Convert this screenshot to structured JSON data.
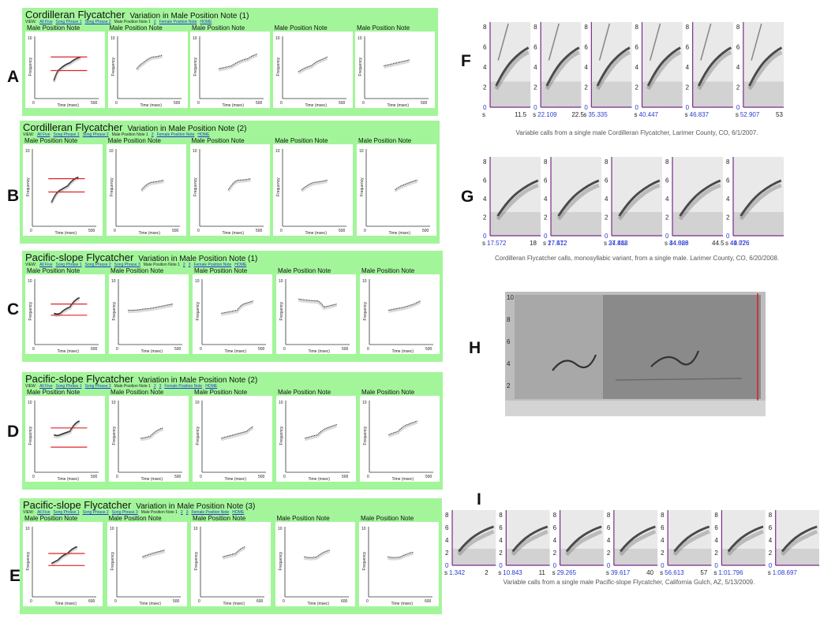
{
  "letters": [
    "A",
    "B",
    "C",
    "D",
    "E",
    "F",
    "G",
    "H",
    "I"
  ],
  "left_panels": [
    {
      "species": "Cordilleran Flycatcher",
      "subtitle": "Variation in Male Position Note (1)",
      "nav": [
        {
          "t": "VIEW:",
          "l": false
        },
        {
          "t": "All Five",
          "l": true
        },
        {
          "t": "Song Phrase 1",
          "l": true
        },
        {
          "t": "Song Phrase 2",
          "l": true
        },
        {
          "t": "Male Position Note 1",
          "l": false
        },
        {
          "t": "2",
          "l": true
        },
        {
          "t": "Female Position Note",
          "l": true
        },
        {
          "t": "HOME",
          "l": true
        }
      ],
      "plot_label": "Male Position Note",
      "xmax": [
        "500",
        "500",
        "500",
        "500",
        "500"
      ]
    },
    {
      "species": "Cordilleran Flycatcher",
      "subtitle": "Variation in Male Position Note (2)",
      "nav": [
        {
          "t": "VIEW:",
          "l": false
        },
        {
          "t": "All Five",
          "l": true
        },
        {
          "t": "Song Phrase 1",
          "l": true
        },
        {
          "t": "Song Phrase 2",
          "l": true
        },
        {
          "t": "Male Position Note 1",
          "l": false
        },
        {
          "t": "2",
          "l": true
        },
        {
          "t": "Female Position Note",
          "l": true
        },
        {
          "t": "HOME",
          "l": true
        }
      ],
      "plot_label": "Male Position Note",
      "xmax": [
        "500",
        "500",
        "500",
        "500",
        "500"
      ]
    },
    {
      "species": "Pacific-slope Flycatcher",
      "subtitle": "Variation in Male Position Note (1)",
      "nav": [
        {
          "t": "VIEW:",
          "l": false
        },
        {
          "t": "All Five",
          "l": true
        },
        {
          "t": "Song Phrase 1",
          "l": true
        },
        {
          "t": "Song Phrase 2",
          "l": true
        },
        {
          "t": "Song Phrase 3",
          "l": true
        },
        {
          "t": "Male Position Note 1",
          "l": false
        },
        {
          "t": "2",
          "l": true
        },
        {
          "t": "3",
          "l": true
        },
        {
          "t": "Female Position Note",
          "l": true
        },
        {
          "t": "HOME",
          "l": true
        }
      ],
      "plot_label": "Male Position Note",
      "xmax": [
        "600",
        "500",
        "500",
        "500",
        "500"
      ]
    },
    {
      "species": "Pacific-slope Flycatcher",
      "subtitle": "Variation in Male Position Note (2)",
      "nav": [
        {
          "t": "VIEW:",
          "l": false
        },
        {
          "t": "All Five",
          "l": true
        },
        {
          "t": "Song Phrase 1",
          "l": true
        },
        {
          "t": "Song Phrase 2",
          "l": true
        },
        {
          "t": "Male Position Note 1",
          "l": false
        },
        {
          "t": "2",
          "l": true
        },
        {
          "t": "3",
          "l": true
        },
        {
          "t": "Female Position Note",
          "l": true
        },
        {
          "t": "HOME",
          "l": true
        }
      ],
      "plot_label": "Male Position Note",
      "xmax": [
        "500",
        "500",
        "500",
        "500",
        "500"
      ]
    },
    {
      "species": "Pacific-slope Flycatcher",
      "subtitle": "Variation in Male Position Note (3)",
      "nav": [
        {
          "t": "VIEW:",
          "l": false
        },
        {
          "t": "All Five",
          "l": true
        },
        {
          "t": "Song Phrase 1",
          "l": true
        },
        {
          "t": "Song Phrase 2",
          "l": true
        },
        {
          "t": "Song Phrase 3",
          "l": true
        },
        {
          "t": "Male Position Note 1",
          "l": false
        },
        {
          "t": "2",
          "l": true
        },
        {
          "t": "3",
          "l": true
        },
        {
          "t": "Female Position Note",
          "l": true
        },
        {
          "t": "HOME",
          "l": true
        }
      ],
      "plot_label": "Male Position Note",
      "xmax": [
        "600",
        "500",
        "600",
        "600",
        "600"
      ]
    }
  ],
  "axis_text": {
    "ylabel": "Frequency",
    "xlabel": "Time (msec)",
    "ymax": "10",
    "x0": "0"
  },
  "right_panels": {
    "F": {
      "caption": "Variable calls from a single male Cordilleran Flycatcher, Larimer County, CO, 6/1/2007.",
      "yticks": [
        "8",
        "6",
        "4",
        "2",
        "0"
      ],
      "times": [
        "22.109",
        "35.335",
        "40.447",
        "46.837",
        "52.907"
      ],
      "first": "11.5",
      "mid": "22.5",
      "last": "53",
      "sLabel": "s"
    },
    "G": {
      "caption": "Cordilleran Flycatcher calls, monosyllabic variant, from a single male. Larimer County, CO, 6/20/2008.",
      "yticks": [
        "8",
        "6",
        "4",
        "2",
        "0"
      ],
      "times": [
        "17.572",
        "27.412",
        "34.888",
        "44.026",
        "49.776"
      ],
      "ends": [
        "18",
        "",
        "",
        "44.5",
        ""
      ],
      "sLabel": "s"
    },
    "H": {
      "yticks": [
        "10",
        "8",
        "6",
        "4",
        "2"
      ]
    },
    "I": {
      "caption": "Variable calls from a single male Pacific-slope Flycatcher, California Gulch, AZ, 5/13/2009.",
      "yticks": [
        "8",
        "6",
        "4",
        "2",
        "0"
      ],
      "times": [
        "1.342",
        "10.843",
        "29.265",
        "39.617",
        "56.613",
        "1:01.796",
        "1:08.697"
      ],
      "ends": [
        "2",
        "11",
        "",
        "40",
        "57",
        "",
        ""
      ],
      "sLabel": "s"
    }
  },
  "colors": {
    "panel_green": "#a3f59a",
    "reference_red": "#e0242a",
    "axis_blue": "#2a3bd0",
    "spectro_purple": "#7a2a8a",
    "playhead_red": "#d8202a"
  }
}
